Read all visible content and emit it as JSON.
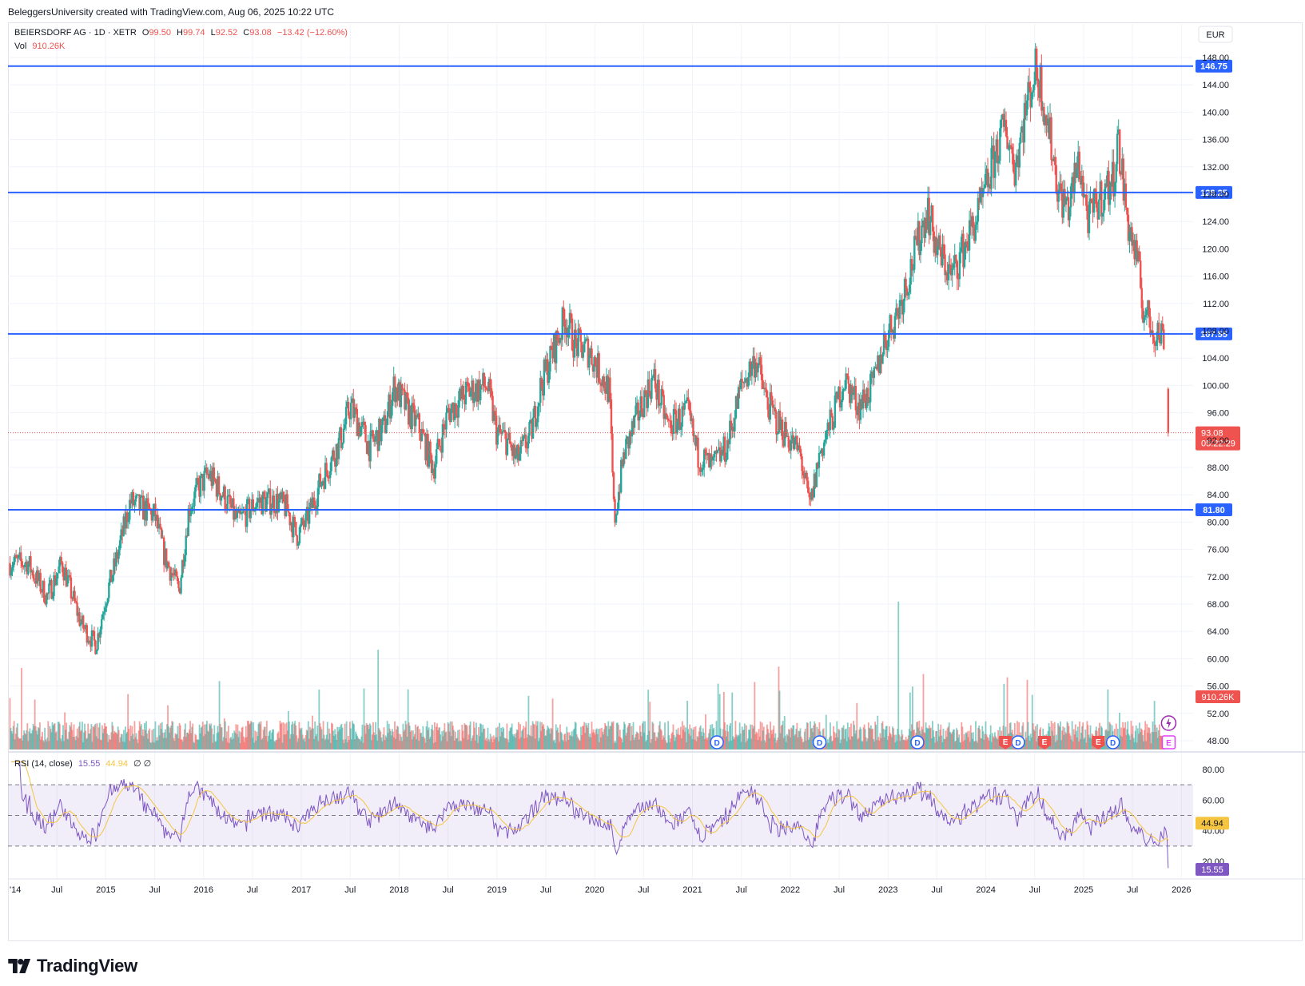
{
  "credit": "BeleggersUniversity created with TradingView.com, Aug 06, 2025 10:22 UTC",
  "brand": "TradingView",
  "currency": "EUR",
  "legend": {
    "symbol": "BEIERSDORF AG · 1D · XETR",
    "o_label": "O",
    "o": "99.50",
    "h_label": "H",
    "h": "99.74",
    "l_label": "L",
    "l": "92.52",
    "c_label": "C",
    "c": "93.08",
    "change": "−13.42 (−12.60%)",
    "vol_label": "Vol",
    "vol": "910.26K"
  },
  "rsi_legend": {
    "label": "RSI (14, close)",
    "rsi": "15.55",
    "ma": "44.94",
    "extra": "∅ ∅"
  },
  "colors": {
    "up": "#26a69a",
    "down": "#ef5350",
    "hline": "#2962ff",
    "rsi": "#7e57c2",
    "rsi_ma": "#f5c542"
  },
  "chart_data": {
    "type": "candlestick",
    "y_axis_labels": [
      "148.00",
      "144.00",
      "140.00",
      "136.00",
      "132.00",
      "128.00",
      "124.00",
      "120.00",
      "116.00",
      "112.00",
      "108.00",
      "104.00",
      "100.00",
      "96.00",
      "92.00",
      "88.00",
      "84.00",
      "80.00",
      "76.00",
      "72.00",
      "68.00",
      "64.00",
      "60.00",
      "56.00",
      "52.00",
      "48.00"
    ],
    "ylim": [
      47,
      149
    ],
    "x_axis_labels": [
      "'14",
      "Jul",
      "2015",
      "Jul",
      "2016",
      "Jul",
      "2017",
      "Jul",
      "2018",
      "Jul",
      "2019",
      "Jul",
      "2020",
      "Jul",
      "2021",
      "Jul",
      "2022",
      "Jul",
      "2023",
      "Jul",
      "2024",
      "Jul",
      "2025",
      "Jul",
      "2026"
    ],
    "horizontal_levels": [
      "146.75",
      "128.25",
      "107.55",
      "81.80"
    ],
    "last_price": "93.08",
    "countdown": "05:22:29",
    "volume_last": "910.26K",
    "price_path": [
      [
        2014.2,
        74
      ],
      [
        2014.4,
        69
      ],
      [
        2014.55,
        74
      ],
      [
        2014.75,
        65
      ],
      [
        2014.9,
        62
      ],
      [
        2015.0,
        69
      ],
      [
        2015.1,
        74
      ],
      [
        2015.25,
        83
      ],
      [
        2015.5,
        81
      ],
      [
        2015.6,
        75
      ],
      [
        2015.75,
        70
      ],
      [
        2015.85,
        82
      ],
      [
        2015.95,
        85
      ],
      [
        2016.05,
        87
      ],
      [
        2016.2,
        84
      ],
      [
        2016.35,
        80
      ],
      [
        2016.55,
        83
      ],
      [
        2016.75,
        83
      ],
      [
        2016.85,
        82
      ],
      [
        2016.95,
        78
      ],
      [
        2017.05,
        80
      ],
      [
        2017.2,
        86
      ],
      [
        2017.4,
        92
      ],
      [
        2017.5,
        97
      ],
      [
        2017.7,
        91
      ],
      [
        2017.85,
        94
      ],
      [
        2017.95,
        100
      ],
      [
        2018.1,
        96
      ],
      [
        2018.2,
        94
      ],
      [
        2018.35,
        88
      ],
      [
        2018.5,
        96
      ],
      [
        2018.7,
        99
      ],
      [
        2018.9,
        100
      ],
      [
        2019.0,
        93
      ],
      [
        2019.1,
        92
      ],
      [
        2019.2,
        89
      ],
      [
        2019.35,
        93
      ],
      [
        2019.45,
        100
      ],
      [
        2019.6,
        106
      ],
      [
        2019.7,
        110
      ],
      [
        2019.8,
        106
      ],
      [
        2019.95,
        105
      ],
      [
        2020.15,
        99
      ],
      [
        2020.2,
        80
      ],
      [
        2020.3,
        90
      ],
      [
        2020.5,
        98
      ],
      [
        2020.6,
        101
      ],
      [
        2020.75,
        94
      ],
      [
        2020.95,
        96
      ],
      [
        2021.05,
        90
      ],
      [
        2021.2,
        88
      ],
      [
        2021.35,
        91
      ],
      [
        2021.5,
        100
      ],
      [
        2021.65,
        104
      ],
      [
        2021.75,
        98
      ],
      [
        2021.85,
        95
      ],
      [
        2022.0,
        92
      ],
      [
        2022.1,
        90
      ],
      [
        2022.2,
        82
      ],
      [
        2022.3,
        90
      ],
      [
        2022.45,
        96
      ],
      [
        2022.55,
        101
      ],
      [
        2022.7,
        97
      ],
      [
        2022.85,
        100
      ],
      [
        2022.95,
        106
      ],
      [
        2023.1,
        111
      ],
      [
        2023.25,
        118
      ],
      [
        2023.4,
        126
      ],
      [
        2023.5,
        120
      ],
      [
        2023.65,
        116
      ],
      [
        2023.8,
        121
      ],
      [
        2023.95,
        126
      ],
      [
        2024.1,
        134
      ],
      [
        2024.2,
        138
      ],
      [
        2024.3,
        132
      ],
      [
        2024.4,
        140
      ],
      [
        2024.5,
        146
      ],
      [
        2024.55,
        145
      ],
      [
        2024.65,
        137
      ],
      [
        2024.75,
        128
      ],
      [
        2024.85,
        126
      ],
      [
        2024.95,
        133
      ],
      [
        2025.05,
        124
      ],
      [
        2025.15,
        127
      ],
      [
        2025.3,
        130
      ],
      [
        2025.35,
        136
      ],
      [
        2025.45,
        124
      ],
      [
        2025.55,
        118
      ],
      [
        2025.6,
        112
      ],
      [
        2025.65,
        110
      ],
      [
        2025.72,
        108
      ],
      [
        2025.78,
        107.5
      ],
      [
        2025.82,
        107.5
      ],
      [
        2025.87,
        93
      ]
    ]
  }
}
